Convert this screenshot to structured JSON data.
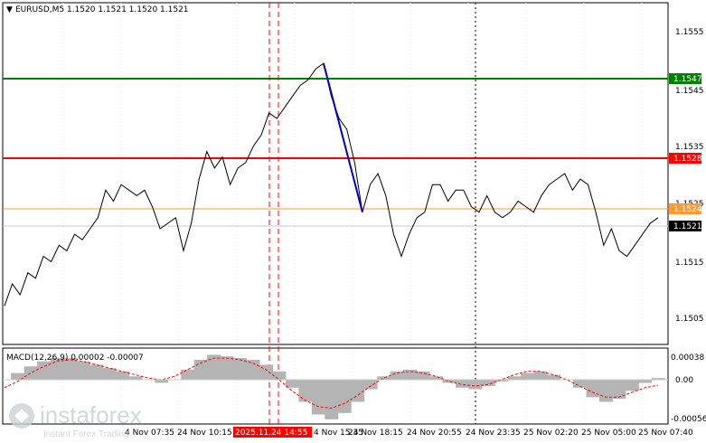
{
  "symbol_info": {
    "title": "EURUSD,M5  1.1520 1.1521 1.1520 1.1521"
  },
  "macd_info": {
    "title": "MACD(12,26,9) 0.00002 -0.00007"
  },
  "price_axis": {
    "ticks": [
      "1.1555",
      "1.1545",
      "1.1535",
      "1.1525",
      "1.1515",
      "1.1505"
    ],
    "markers": [
      {
        "label": "1.1547",
        "color": "#008000"
      },
      {
        "label": "1.1528",
        "color": "#ff0000"
      },
      {
        "label": "1.1524",
        "color": "#ff9a33"
      },
      {
        "label": "1.1521",
        "color": "#000000"
      }
    ]
  },
  "macd_axis": {
    "ticks": [
      "0.00038",
      "0.00",
      "-0.00056"
    ]
  },
  "time_axis": {
    "labels": [
      "24 Nov 10:15",
      "2025.11.24 14:55",
      "4 Nov 15:35",
      "24 Nov 18:15",
      "24 Nov 20:55",
      "24 Nov 23:35",
      "25 Nov 02:20",
      "25 Nov 05:00",
      "25 Nov 07:40"
    ],
    "partial_left": "4 Nov 07:35",
    "highlight_prefix": "2",
    "highlight_color": "#ff0000"
  },
  "watermark": {
    "brand": "instaforex",
    "tagline": "Instant Forex Trading"
  },
  "colors": {
    "price_line": "#000000",
    "trend_line": "#0000cc",
    "grid": "#c8c8c8",
    "vertical_marker": "#ff0000",
    "histogram": "#b4b4b4",
    "signal": "#ff0000"
  },
  "chart_data": {
    "type": "line",
    "ylim": [
      1.1498,
      1.156
    ],
    "levels": [
      1.1547,
      1.1528,
      1.1524,
      1.1521
    ],
    "price": [
      1.1505,
      1.1509,
      1.1507,
      1.1511,
      1.151,
      1.1514,
      1.1513,
      1.1516,
      1.1515,
      1.1518,
      1.1517,
      1.1519,
      1.1521,
      1.1526,
      1.1524,
      1.1527,
      1.1526,
      1.1525,
      1.1526,
      1.1523,
      1.1519,
      1.152,
      1.1521,
      1.1515,
      1.152,
      1.1528,
      1.1533,
      1.153,
      1.1532,
      1.1527,
      1.153,
      1.1531,
      1.1534,
      1.1536,
      1.154,
      1.1539,
      1.1541,
      1.1543,
      1.1545,
      1.1546,
      1.1548,
      1.1549,
      1.1543,
      1.1539,
      1.1537,
      1.1531,
      1.1522,
      1.1527,
      1.1529,
      1.1525,
      1.1518,
      1.1514,
      1.1518,
      1.1521,
      1.1522,
      1.1527,
      1.1527,
      1.1524,
      1.1526,
      1.1526,
      1.1523,
      1.1522,
      1.1525,
      1.1522,
      1.1521,
      1.1522,
      1.1524,
      1.1523,
      1.1522,
      1.1525,
      1.1527,
      1.1528,
      1.1529,
      1.1526,
      1.1528,
      1.1527,
      1.1522,
      1.1516,
      1.1519,
      1.1515,
      1.1514,
      1.1516,
      1.1518,
      1.152,
      1.1521
    ],
    "trend_line": {
      "from": 1.1549,
      "to": 1.1522
    },
    "macd_hist": [
      0.0,
      8e-05,
      0.00016,
      0.00022,
      0.00026,
      0.00026,
      0.00022,
      0.00018,
      0.00014,
      0.0001,
      4e-05,
      0.0,
      -4e-05,
      0.0,
      0.00012,
      0.00024,
      0.0003,
      0.00028,
      0.00026,
      0.00024,
      0.00018,
      0.0001,
      -0.0001,
      -0.00028,
      -0.00044,
      -0.0005,
      -0.00042,
      -0.00028,
      -0.00012,
      4e-05,
      0.0001,
      0.00012,
      0.0001,
      4e-05,
      -4e-05,
      -0.0001,
      -0.00012,
      -8e-05,
      -2e-05,
      4e-05,
      8e-05,
      0.0001,
      6e-05,
      0.0,
      -0.0001,
      -0.00022,
      -0.00028,
      -0.00024,
      -0.00014,
      -4e-05,
      2e-05
    ],
    "macd_signal": [
      -0.0001,
      -2e-05,
      8e-05,
      0.00016,
      0.00022,
      0.00024,
      0.00022,
      0.00018,
      0.00014,
      0.0001,
      6e-05,
      2e-05,
      0.0,
      4e-05,
      0.00012,
      0.0002,
      0.00026,
      0.00026,
      0.00024,
      0.0002,
      0.00012,
      0.0,
      -0.00014,
      -0.00026,
      -0.00034,
      -0.00036,
      -0.0003,
      -0.0002,
      -8e-05,
      2e-05,
      8e-05,
      0.0001,
      8e-05,
      4e-05,
      -2e-05,
      -6e-05,
      -8e-05,
      -6e-05,
      0.0,
      6e-05,
      0.0001,
      0.0001,
      6e-05,
      0.0,
      -8e-05,
      -0.00016,
      -0.00022,
      -0.00022,
      -0.00016,
      -0.0001,
      -7e-05
    ]
  }
}
